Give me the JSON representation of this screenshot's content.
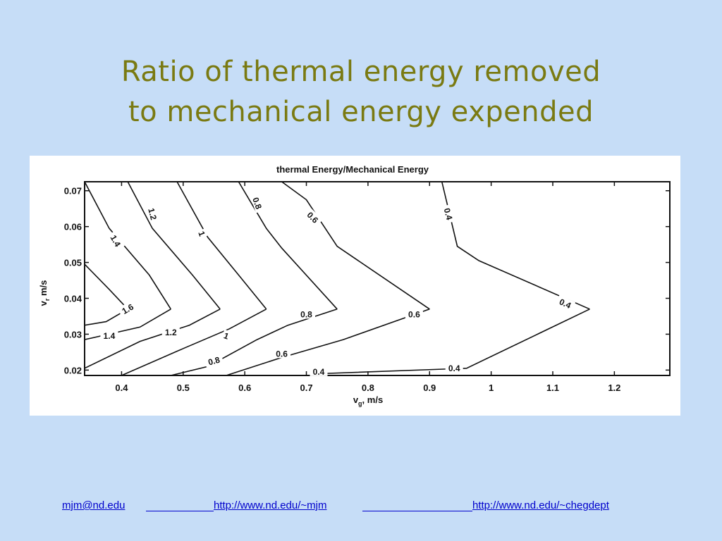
{
  "slide": {
    "title_line1": "Ratio of thermal energy removed",
    "title_line2": "to mechanical energy expended"
  },
  "footer": {
    "email": "mjm@nd.edu",
    "link1": "http://www.nd.edu/~mjm",
    "link2": "http://www.nd.edu/~chegdept"
  },
  "colors": {
    "background": "#c6ddf7",
    "title": "#7a7a12",
    "link": "#0000cc",
    "plot_ink": "#111111"
  },
  "chart_data": {
    "type": "contour",
    "title": "thermal Energy/Mechanical Energy",
    "xlabel": "v_g, m/s",
    "ylabel": "v_r m/s",
    "xlim": [
      0.34,
      1.29
    ],
    "ylim": [
      0.0185,
      0.0725
    ],
    "xticks": [
      0.4,
      0.5,
      0.6,
      0.7,
      0.8,
      0.9,
      1,
      1.1,
      1.2
    ],
    "yticks": [
      0.02,
      0.03,
      0.04,
      0.05,
      0.06,
      0.07
    ],
    "xtick_labels": [
      "0.4",
      "0.5",
      "0.6",
      "0.7",
      "0.8",
      "0.9",
      "1",
      "1.1",
      "1.2"
    ],
    "ytick_labels": [
      "0.02",
      "0.03",
      "0.04",
      "0.05",
      "0.06",
      "0.07"
    ],
    "grid": false,
    "contours": [
      {
        "level": "1.6",
        "points": [
          [
            0.34,
            0.0495
          ],
          [
            0.38,
            0.0425
          ],
          [
            0.41,
            0.037
          ]
        ]
      },
      {
        "level": "1.6",
        "points": [
          [
            0.34,
            0.0325
          ],
          [
            0.375,
            0.0335
          ],
          [
            0.41,
            0.037
          ]
        ]
      },
      {
        "level": "1.4",
        "points": [
          [
            0.34,
            0.0725
          ],
          [
            0.38,
            0.0595
          ],
          [
            0.445,
            0.0465
          ],
          [
            0.48,
            0.037
          ]
        ]
      },
      {
        "level": "1.4",
        "points": [
          [
            0.34,
            0.0285
          ],
          [
            0.43,
            0.032
          ],
          [
            0.48,
            0.037
          ]
        ]
      },
      {
        "level": "1.2",
        "points": [
          [
            0.41,
            0.0725
          ],
          [
            0.45,
            0.0595
          ],
          [
            0.515,
            0.0465
          ],
          [
            0.56,
            0.037
          ]
        ]
      },
      {
        "level": "1.2",
        "points": [
          [
            0.34,
            0.0205
          ],
          [
            0.43,
            0.028
          ],
          [
            0.51,
            0.0325
          ],
          [
            0.56,
            0.037
          ]
        ]
      },
      {
        "level": "1",
        "points": [
          [
            0.49,
            0.0725
          ],
          [
            0.54,
            0.057
          ],
          [
            0.59,
            0.0465
          ],
          [
            0.635,
            0.037
          ]
        ]
      },
      {
        "level": "1",
        "points": [
          [
            0.4,
            0.0185
          ],
          [
            0.5,
            0.026
          ],
          [
            0.575,
            0.0315
          ],
          [
            0.635,
            0.037
          ]
        ]
      },
      {
        "level": "0.8",
        "points": [
          [
            0.59,
            0.0725
          ],
          [
            0.635,
            0.0595
          ],
          [
            0.66,
            0.054
          ],
          [
            0.75,
            0.037
          ]
        ]
      },
      {
        "level": "0.8",
        "points": [
          [
            0.48,
            0.0185
          ],
          [
            0.54,
            0.021
          ],
          [
            0.62,
            0.0285
          ],
          [
            0.67,
            0.0325
          ],
          [
            0.75,
            0.037
          ]
        ]
      },
      {
        "level": "0.6",
        "points": [
          [
            0.66,
            0.0725
          ],
          [
            0.7,
            0.0675
          ],
          [
            0.75,
            0.0545
          ],
          [
            0.9,
            0.037
          ]
        ]
      },
      {
        "level": "0.6",
        "points": [
          [
            0.57,
            0.0185
          ],
          [
            0.66,
            0.0235
          ],
          [
            0.76,
            0.0285
          ],
          [
            0.9,
            0.037
          ]
        ]
      },
      {
        "level": "0.4",
        "points": [
          [
            0.92,
            0.0725
          ],
          [
            0.945,
            0.0545
          ],
          [
            0.98,
            0.0505
          ],
          [
            1.16,
            0.037
          ]
        ]
      },
      {
        "level": "0.4",
        "points": [
          [
            0.72,
            0.019
          ],
          [
            0.96,
            0.0205
          ],
          [
            1.16,
            0.037
          ]
        ]
      }
    ],
    "labels": [
      {
        "text": "1.6",
        "x": 0.41,
        "y": 0.037,
        "rot": -30
      },
      {
        "text": "1.4",
        "x": 0.39,
        "y": 0.056,
        "rot": 60
      },
      {
        "text": "1.4",
        "x": 0.38,
        "y": 0.0295,
        "rot": 0
      },
      {
        "text": "1.2",
        "x": 0.45,
        "y": 0.0635,
        "rot": 75
      },
      {
        "text": "1.2",
        "x": 0.48,
        "y": 0.0305,
        "rot": 0
      },
      {
        "text": "1",
        "x": 0.53,
        "y": 0.058,
        "rot": 70
      },
      {
        "text": "1",
        "x": 0.57,
        "y": 0.0295,
        "rot": 20
      },
      {
        "text": "0.8",
        "x": 0.62,
        "y": 0.0665,
        "rot": 70
      },
      {
        "text": "0.8",
        "x": 0.55,
        "y": 0.0225,
        "rot": -15
      },
      {
        "text": "0.8",
        "x": 0.7,
        "y": 0.0355,
        "rot": 0
      },
      {
        "text": "0.6",
        "x": 0.71,
        "y": 0.0625,
        "rot": 45
      },
      {
        "text": "0.6",
        "x": 0.66,
        "y": 0.0245,
        "rot": 0
      },
      {
        "text": "0.6",
        "x": 0.875,
        "y": 0.0355,
        "rot": 0
      },
      {
        "text": "0.4",
        "x": 0.93,
        "y": 0.0635,
        "rot": 75
      },
      {
        "text": "0.4",
        "x": 1.12,
        "y": 0.0385,
        "rot": 25
      },
      {
        "text": "0.4",
        "x": 0.94,
        "y": 0.0205,
        "rot": 0
      },
      {
        "text": "0.4",
        "x": 0.72,
        "y": 0.0195,
        "rot": 0
      }
    ]
  }
}
